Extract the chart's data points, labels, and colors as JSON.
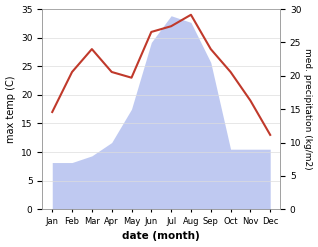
{
  "months": [
    "Jan",
    "Feb",
    "Mar",
    "Apr",
    "May",
    "Jun",
    "Jul",
    "Aug",
    "Sep",
    "Oct",
    "Nov",
    "Dec"
  ],
  "temperature": [
    17,
    24,
    28,
    24,
    23,
    31,
    32,
    34,
    28,
    24,
    19,
    13
  ],
  "precipitation": [
    7,
    7,
    8,
    10,
    15,
    25,
    29,
    28,
    22,
    9,
    9,
    9
  ],
  "temp_color": "#c0392b",
  "precip_color": "#b8c4f0",
  "xlabel": "date (month)",
  "ylabel_left": "max temp (C)",
  "ylabel_right": "med. precipitation (kg/m2)",
  "ylim_left": [
    0,
    35
  ],
  "ylim_right": [
    0,
    30
  ],
  "yticks_left": [
    0,
    5,
    10,
    15,
    20,
    25,
    30,
    35
  ],
  "yticks_right": [
    0,
    5,
    10,
    15,
    20,
    25,
    30
  ],
  "grid_color": "#dddddd"
}
